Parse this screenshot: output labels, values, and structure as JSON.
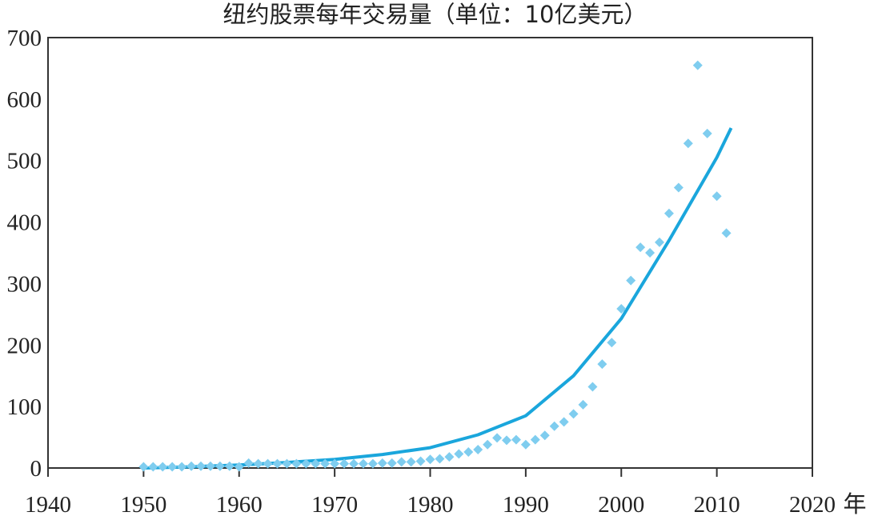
{
  "chart_data": {
    "type": "scatter",
    "title": "纽约股票每年交易量（单位：10亿美元）",
    "xlabel": "年",
    "ylabel": "",
    "xlim": [
      1940,
      2020
    ],
    "ylim": [
      0,
      700
    ],
    "xticks": [
      "1940",
      "1950",
      "1960",
      "1970",
      "1980",
      "1990",
      "2000",
      "2010",
      "2020"
    ],
    "yticks": [
      "0",
      "100",
      "200",
      "300",
      "400",
      "500",
      "600",
      "700"
    ],
    "grid": false,
    "colors": {
      "points": "#7fcdef",
      "fit": "#1aa6dc",
      "axis": "#333333"
    },
    "series": [
      {
        "type": "scatter",
        "marker": "diamond",
        "x": [
          1950,
          1951,
          1952,
          1953,
          1954,
          1955,
          1956,
          1957,
          1958,
          1959,
          1960,
          1961,
          1962,
          1963,
          1964,
          1965,
          1966,
          1967,
          1968,
          1969,
          1970,
          1971,
          1972,
          1973,
          1974,
          1975,
          1976,
          1977,
          1978,
          1979,
          1980,
          1981,
          1982,
          1983,
          1984,
          1985,
          1986,
          1987,
          1988,
          1989,
          1990,
          1991,
          1992,
          1993,
          1994,
          1995,
          1996,
          1997,
          1998,
          1999,
          2000,
          2001,
          2002,
          2003,
          2004,
          2005,
          2006,
          2007,
          2008,
          2009,
          2010,
          2011
        ],
        "y": [
          2,
          2,
          2,
          2,
          2,
          3,
          3,
          3,
          3,
          3,
          2,
          8,
          7,
          7,
          7,
          7,
          7,
          7,
          7,
          7,
          7,
          7,
          7,
          7,
          7,
          8,
          8,
          10,
          10,
          11,
          14,
          15,
          18,
          23,
          26,
          30,
          38,
          49,
          45,
          46,
          38,
          46,
          53,
          68,
          75,
          88,
          103,
          132,
          169,
          204,
          259,
          305,
          359,
          350,
          367,
          414,
          456,
          528,
          655,
          544,
          442,
          382
        ]
      },
      {
        "type": "line",
        "x": [
          1950,
          1955,
          1960,
          1965,
          1970,
          1975,
          1980,
          1985,
          1990,
          1995,
          2000,
          2005,
          2010,
          2011.5
        ],
        "y": [
          0,
          2,
          5,
          9,
          14,
          22,
          33,
          54,
          85,
          150,
          243,
          370,
          505,
          553
        ]
      }
    ]
  }
}
